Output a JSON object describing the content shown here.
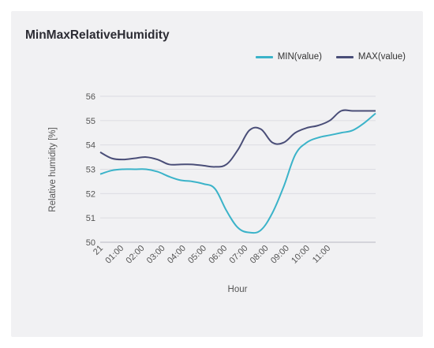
{
  "chart_data": {
    "type": "line",
    "title": "MinMaxRelativeHumidity",
    "xlabel": "Hour",
    "ylabel": "Relative humidity [%]",
    "ylim": [
      50,
      56
    ],
    "yticks": [
      "50",
      "51",
      "52",
      "53",
      "54",
      "55",
      "56"
    ],
    "xticks": [
      "21",
      "01:00",
      "02:00",
      "03:00",
      "04:00",
      "05:00",
      "06:00",
      "07:00",
      "08:00",
      "09:00",
      "10:00",
      "11:00"
    ],
    "grid": "horizontal",
    "legend_position": "top-right",
    "x": [
      0,
      0.5,
      1,
      1.5,
      2,
      2.5,
      3,
      3.5,
      4,
      4.5,
      5,
      5.5,
      6,
      6.5,
      7,
      7.5,
      8,
      8.5,
      9,
      9.5,
      10,
      10.5,
      11,
      11.5,
      12
    ],
    "series": [
      {
        "name": "MIN(value)",
        "color": "#3bb3c9",
        "values": [
          52.8,
          52.95,
          53.0,
          53.0,
          53.0,
          52.9,
          52.7,
          52.55,
          52.5,
          52.4,
          52.2,
          51.3,
          50.6,
          50.4,
          50.5,
          51.2,
          52.3,
          53.6,
          54.1,
          54.3,
          54.4,
          54.5,
          54.6,
          54.9,
          55.3
        ]
      },
      {
        "name": "MAX(value)",
        "color": "#4a4e78",
        "values": [
          53.7,
          53.45,
          53.4,
          53.45,
          53.5,
          53.4,
          53.2,
          53.2,
          53.2,
          53.15,
          53.1,
          53.2,
          53.8,
          54.6,
          54.65,
          54.1,
          54.1,
          54.5,
          54.7,
          54.8,
          55.0,
          55.4,
          55.4,
          55.4,
          55.4
        ]
      }
    ]
  }
}
